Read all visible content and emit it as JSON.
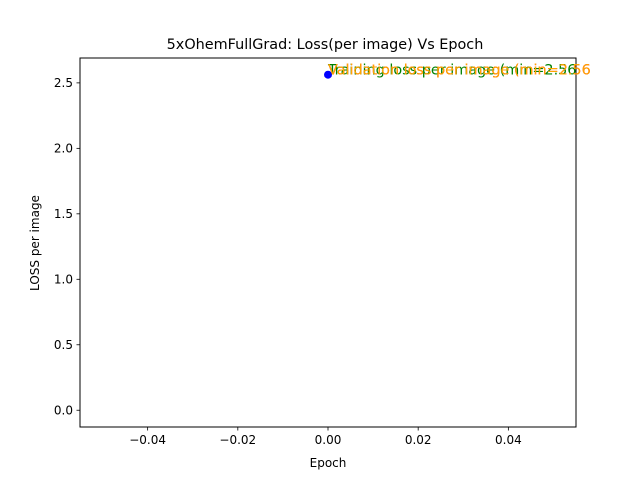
{
  "chart_data": {
    "type": "scatter",
    "title": "5xOhemFullGrad:  Loss(per image) Vs Epoch",
    "xlabel": "Epoch",
    "ylabel": "LOSS per image",
    "xlim": [
      -0.055,
      0.055
    ],
    "ylim": [
      -0.128,
      2.69
    ],
    "xticks": [
      -0.04,
      -0.02,
      0.0,
      0.02,
      0.04
    ],
    "xtick_labels": [
      "−0.04",
      "−0.02",
      "0.00",
      "0.02",
      "0.04"
    ],
    "yticks": [
      0.0,
      0.5,
      1.0,
      1.5,
      2.0,
      2.5
    ],
    "ytick_labels": [
      "0.0",
      "0.5",
      "1.0",
      "1.5",
      "2.0",
      "2.5"
    ],
    "grid": false,
    "legend": "none",
    "series": [
      {
        "color": "#0000ff",
        "points": [
          {
            "x": 0,
            "y": 2.5625
          }
        ]
      }
    ],
    "annotations": [
      {
        "text": "Validation loss per image (min=2.56",
        "x": 0,
        "y": 2.5625,
        "color": "#ff0000"
      },
      {
        "text": "Training loss per image (min=2.56",
        "x": 0,
        "y": 2.5625,
        "color": "#008000"
      },
      {
        "text": "Validation loss per image (min=2.56",
        "x": 0,
        "y": 2.5625,
        "color": "#ffa500"
      }
    ]
  }
}
